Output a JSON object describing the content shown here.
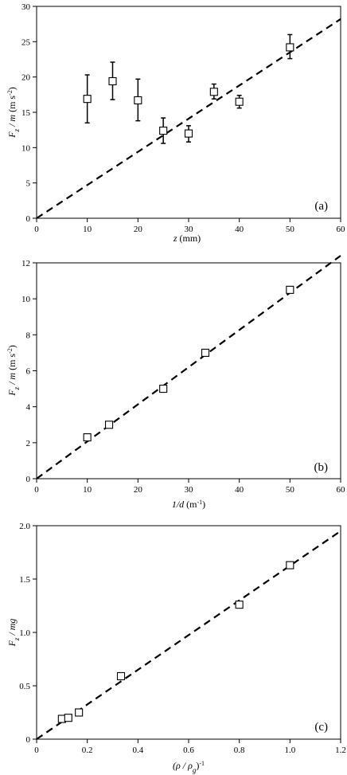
{
  "chart_data": [
    {
      "type": "scatter",
      "panel_label": "(a)",
      "xlabel": {
        "var": "z",
        "unit": "(mm)"
      },
      "ylabel": {
        "var": "F",
        "sub": "z",
        "rest": " / m",
        "unit": "(m s",
        "sup": "-2",
        "close": ")"
      },
      "xlim": [
        0,
        60
      ],
      "ylim": [
        0,
        30
      ],
      "xticks": [
        0,
        10,
        20,
        30,
        40,
        50,
        60
      ],
      "yticks": [
        0,
        5,
        10,
        15,
        20,
        25,
        30
      ],
      "points": [
        {
          "x": 10,
          "y": 16.9,
          "err_low": 13.5,
          "err_high": 20.3
        },
        {
          "x": 15,
          "y": 19.4,
          "err_low": 16.8,
          "err_high": 22.1
        },
        {
          "x": 20,
          "y": 16.7,
          "err_low": 13.8,
          "err_high": 19.7
        },
        {
          "x": 25,
          "y": 12.4,
          "err_low": 10.6,
          "err_high": 14.2
        },
        {
          "x": 30,
          "y": 12.0,
          "err_low": 10.8,
          "err_high": 13.1
        },
        {
          "x": 35,
          "y": 17.9,
          "err_low": 16.9,
          "err_high": 19.0
        },
        {
          "x": 40,
          "y": 16.5,
          "err_low": 15.6,
          "err_high": 17.4
        },
        {
          "x": 50,
          "y": 24.2,
          "err_low": 22.6,
          "err_high": 26.0
        }
      ],
      "fit_line": {
        "x": [
          0,
          60
        ],
        "y": [
          0,
          28.2
        ]
      }
    },
    {
      "type": "scatter",
      "panel_label": "(b)",
      "xlabel": {
        "var": "1/d",
        "unit": "(m",
        "sup": "-1",
        "close": ")"
      },
      "ylabel": {
        "var": "F",
        "sub": "z",
        "rest": " / m",
        "unit": "(m s",
        "sup": "-2",
        "close": ")"
      },
      "xlim": [
        0,
        60
      ],
      "ylim": [
        0,
        12
      ],
      "xticks": [
        0,
        10,
        20,
        30,
        40,
        50,
        60
      ],
      "yticks": [
        0,
        2,
        4,
        6,
        8,
        10,
        12
      ],
      "points": [
        {
          "x": 10,
          "y": 2.3
        },
        {
          "x": 14.3,
          "y": 3.0
        },
        {
          "x": 25,
          "y": 5.0
        },
        {
          "x": 33.3,
          "y": 7.0
        },
        {
          "x": 50,
          "y": 10.5
        }
      ],
      "fit_line": {
        "x": [
          0,
          60
        ],
        "y": [
          0,
          12.4
        ]
      }
    },
    {
      "type": "scatter",
      "panel_label": "(c)",
      "xlabel": {
        "var": "(ρ / ρ",
        "sub": "g",
        "rest": ")",
        "sup": "-1"
      },
      "ylabel": {
        "var": "F",
        "sub": "z",
        "rest": " / mg"
      },
      "xlim": [
        0,
        1.2
      ],
      "ylim": [
        0,
        2.0
      ],
      "xticks": [
        0,
        0.2,
        0.4,
        0.6,
        0.8,
        1.0,
        1.2
      ],
      "xtick_labels": [
        "0",
        "0.2",
        "0.4",
        "0.6",
        "0.8",
        "1.0",
        "1.2"
      ],
      "yticks": [
        0,
        0.5,
        1.0,
        1.5,
        2.0
      ],
      "ytick_labels": [
        "0",
        "0.5",
        "1.0",
        "1.5",
        "2.0"
      ],
      "points": [
        {
          "x": 0.1,
          "y": 0.19
        },
        {
          "x": 0.125,
          "y": 0.2
        },
        {
          "x": 0.167,
          "y": 0.25
        },
        {
          "x": 0.333,
          "y": 0.59
        },
        {
          "x": 0.8,
          "y": 1.26
        },
        {
          "x": 1.0,
          "y": 1.63
        }
      ],
      "fit_line": {
        "x": [
          0,
          1.2
        ],
        "y": [
          0,
          1.95
        ]
      }
    }
  ]
}
